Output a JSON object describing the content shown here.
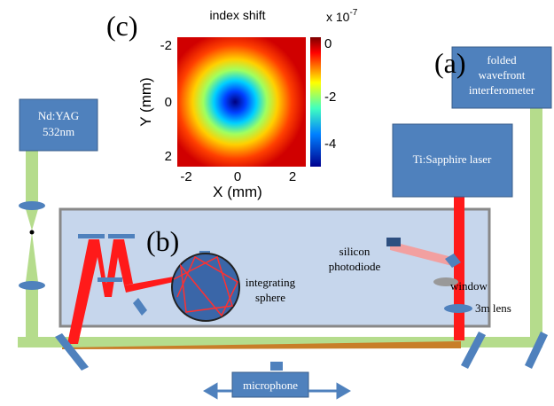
{
  "inset": {
    "panel_label": "(c)",
    "title": "index shift",
    "x_label": "X (mm)",
    "y_label": "Y (mm)",
    "x_ticks": [
      "-2",
      "0",
      "2"
    ],
    "y_ticks": [
      "-2",
      "0",
      "2"
    ],
    "colorbar_ticks": [
      "0",
      "-2",
      "-4"
    ],
    "multiplier_base": "x 10",
    "multiplier_exponent": "-7"
  },
  "setup": {
    "panel_a": "(a)",
    "panel_b": "(b)",
    "interferometer": [
      "folded",
      "wavefront",
      "interferometer"
    ],
    "pump_laser": [
      "Nd:YAG",
      "532nm"
    ],
    "probe_laser": "Ti:Sapphire laser",
    "detector": [
      "silicon",
      "photodiode"
    ],
    "window": "window",
    "lens": "3m lens",
    "sphere": [
      "integrating",
      "sphere"
    ],
    "microphone": "microphone"
  }
}
